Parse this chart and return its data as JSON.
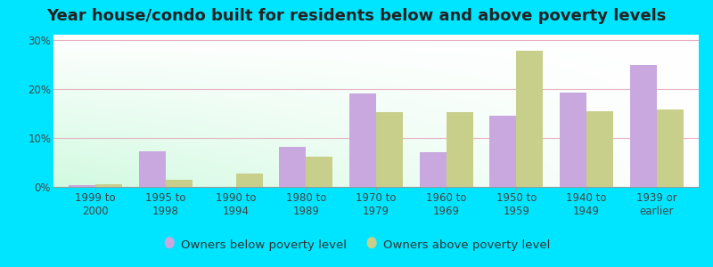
{
  "title": "Year house/condo built for residents below and above poverty levels",
  "categories": [
    "1999 to\n2000",
    "1995 to\n1998",
    "1990 to\n1994",
    "1980 to\n1989",
    "1970 to\n1979",
    "1960 to\n1969",
    "1950 to\n1959",
    "1940 to\n1949",
    "1939 or\nearlier"
  ],
  "below_poverty": [
    0.3,
    7.2,
    0.0,
    8.2,
    19.0,
    7.0,
    14.5,
    19.2,
    24.8
  ],
  "above_poverty": [
    0.5,
    1.5,
    2.8,
    6.2,
    15.3,
    15.3,
    27.8,
    15.5,
    15.8
  ],
  "below_color": "#c9a8e0",
  "above_color": "#c8cf8a",
  "ylim": [
    0,
    31
  ],
  "yticks": [
    0,
    10,
    20,
    30
  ],
  "ytick_labels": [
    "0%",
    "10%",
    "20%",
    "30%"
  ],
  "outer_background": "#00e5ff",
  "gridline_color": "#e8b0c0",
  "title_fontsize": 13,
  "tick_fontsize": 8.5,
  "legend_fontsize": 9.5,
  "bar_width": 0.38,
  "legend_below_label": "Owners below poverty level",
  "legend_above_label": "Owners above poverty level",
  "grad_topleft": "#b8e8c8",
  "grad_topright": "#e8f8e8",
  "grad_botleft": "#e0f4e0",
  "grad_botright": "#ffffff"
}
